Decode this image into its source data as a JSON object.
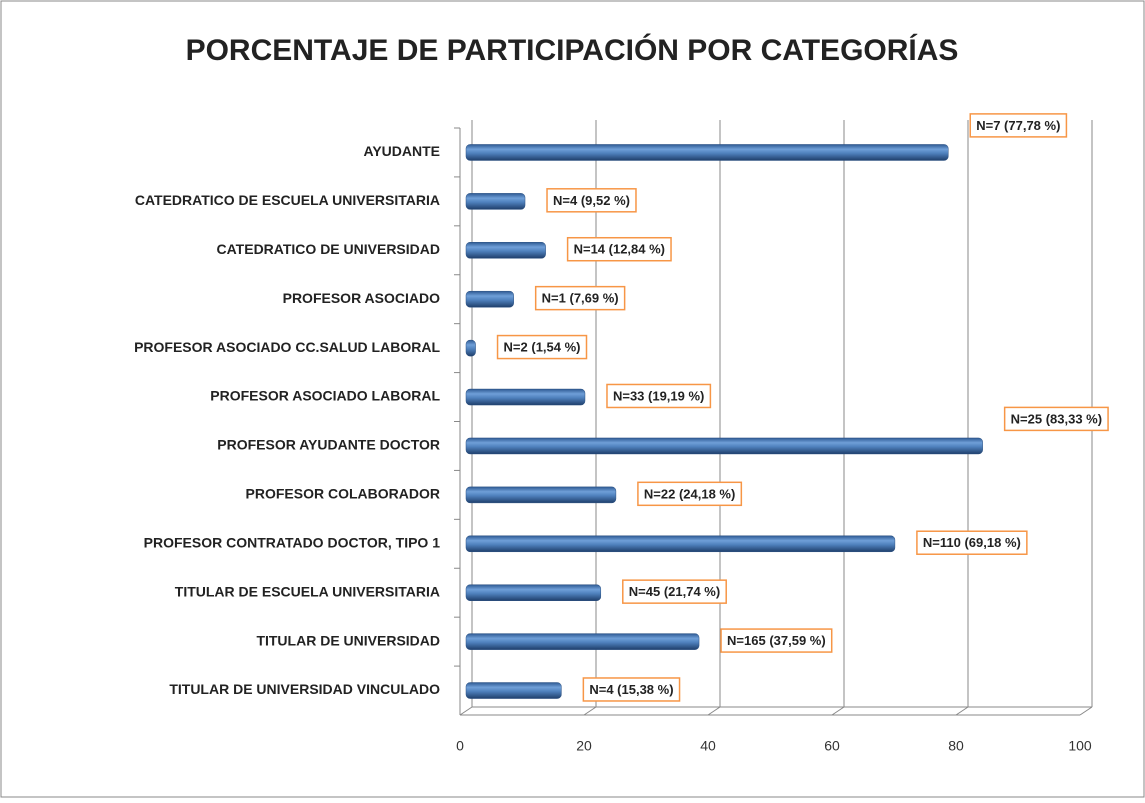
{
  "chart_data": {
    "type": "bar",
    "orientation": "horizontal",
    "title": "PORCENTAJE DE PARTICIPACIÓN POR CATEGORÍAS",
    "categories": [
      "AYUDANTE",
      "CATEDRATICO DE ESCUELA UNIVERSITARIA",
      "CATEDRATICO DE UNIVERSIDAD",
      "PROFESOR ASOCIADO",
      "PROFESOR ASOCIADO CC.SALUD LABORAL",
      "PROFESOR ASOCIADO LABORAL",
      "PROFESOR AYUDANTE DOCTOR",
      "PROFESOR COLABORADOR",
      "PROFESOR CONTRATADO DOCTOR, TIPO 1",
      "TITULAR DE ESCUELA  UNIVERSITARIA",
      "TITULAR DE UNIVERSIDAD",
      "TITULAR DE UNIVERSIDAD VINCULADO"
    ],
    "values": [
      77.78,
      9.52,
      12.84,
      7.69,
      1.54,
      19.19,
      83.33,
      24.18,
      69.18,
      21.74,
      37.59,
      15.38
    ],
    "value_labels": [
      "N=7 (77,78 %)",
      "N=4 (9,52 %)",
      "N=14 (12,84 %)",
      "N=1 (7,69 %)",
      "N=2 (1,54 %)",
      "N=33 (19,19 %)",
      "N=25 (83,33 %)",
      "N=22 (24,18 %)",
      "N=110 (69,18 %)",
      "N=45 (21,74 %)",
      "N=165 (37,59 %)",
      "N=4 (15,38 %)"
    ],
    "color": "#4f81bd",
    "xlim": [
      0,
      100
    ],
    "xticks": [
      0,
      20,
      40,
      60,
      80,
      100
    ],
    "grid": true
  }
}
